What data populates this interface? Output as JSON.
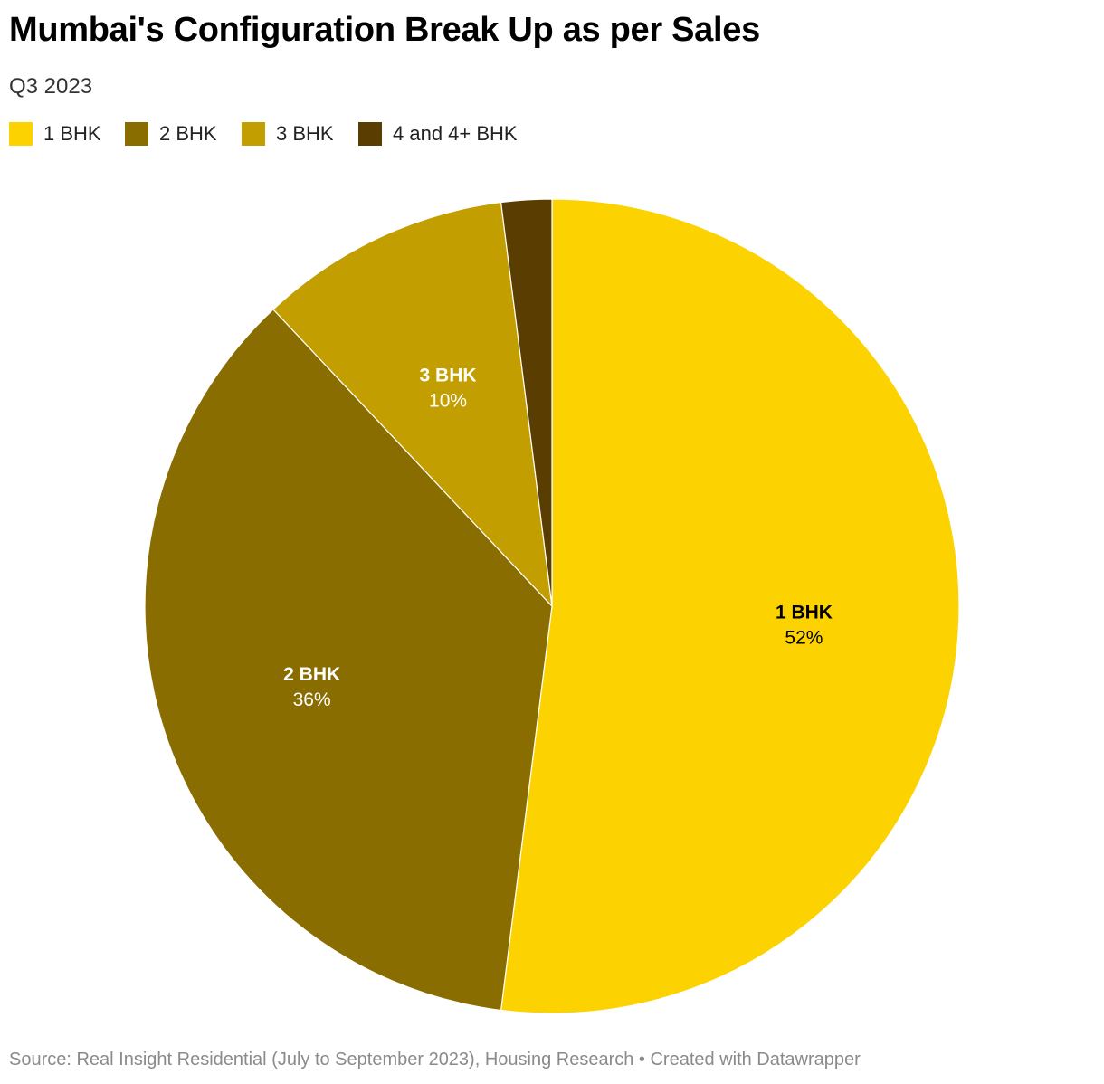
{
  "header": {
    "title": "Mumbai's Configuration Break Up as per Sales",
    "subtitle": "Q3 2023"
  },
  "chart_data": {
    "type": "pie",
    "title": "Mumbai's Configuration Break Up as per Sales",
    "subtitle": "Q3 2023",
    "slices": [
      {
        "label": "1 BHK",
        "value": 52,
        "display": "52%",
        "color": "#fcd200",
        "label_color": "#000000",
        "show_label": true
      },
      {
        "label": "2 BHK",
        "value": 36,
        "display": "36%",
        "color": "#8a6d00",
        "label_color": "#ffffff",
        "show_label": true
      },
      {
        "label": "3 BHK",
        "value": 10,
        "display": "10%",
        "color": "#c29e00",
        "label_color": "#ffffff",
        "show_label": true
      },
      {
        "label": "4 and 4+ BHK",
        "value": 2,
        "display": "2%",
        "color": "#5a3d00",
        "label_color": "#ffffff",
        "show_label": false
      }
    ],
    "legend_position": "top-left"
  },
  "legend": {
    "items": [
      {
        "label": "1 BHK",
        "color": "#fcd200"
      },
      {
        "label": "2 BHK",
        "color": "#8a6d00"
      },
      {
        "label": "3 BHK",
        "color": "#c29e00"
      },
      {
        "label": "4 and 4+ BHK",
        "color": "#5a3d00"
      }
    ]
  },
  "footer": {
    "source": "Source: Real Insight Residential (July to September 2023), Housing Research • Created with Datawrapper"
  }
}
